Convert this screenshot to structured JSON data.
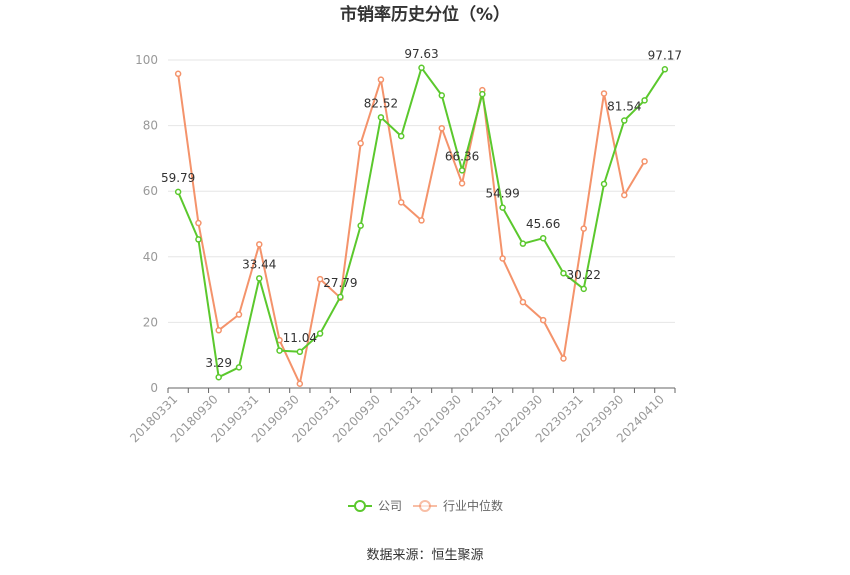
{
  "chart_data": {
    "type": "line",
    "title": "市销率历史分位（%）",
    "xlabel": "",
    "ylabel": "",
    "ylim": [
      0,
      100
    ],
    "yticks": [
      "0",
      "20",
      "40",
      "60",
      "80",
      "100"
    ],
    "xtick_labels": [
      "20180331",
      "20180930",
      "20190331",
      "20190930",
      "20200331",
      "20200930",
      "20210331",
      "20210930",
      "20220331",
      "20220930",
      "20230331",
      "20230930",
      "20240410"
    ],
    "categories": [
      "20180331",
      "20180630",
      "20180930",
      "20181231",
      "20190331",
      "20190630",
      "20190930",
      "20191231",
      "20200331",
      "20200630",
      "20200930",
      "20201231",
      "20210331",
      "20210630",
      "20210930",
      "20211231",
      "20220331",
      "20220630",
      "20220930",
      "20221231",
      "20230331",
      "20230630",
      "20230930",
      "20231231",
      "20240410"
    ],
    "series": [
      {
        "name": "公司",
        "color": "#5bc82d",
        "values": [
          59.79,
          45.3,
          3.29,
          6.3,
          33.44,
          11.4,
          11.04,
          16.6,
          27.79,
          49.5,
          82.52,
          76.8,
          97.63,
          89.2,
          66.36,
          89.6,
          54.99,
          44.0,
          45.66,
          35.0,
          30.22,
          62.2,
          81.54,
          87.7,
          97.17
        ],
        "labels": [
          "59.79",
          "",
          "3.29",
          "",
          "33.44",
          "",
          "11.04",
          "",
          "27.79",
          "",
          "82.52",
          "",
          "97.63",
          "",
          "66.36",
          "",
          "54.99",
          "",
          "45.66",
          "",
          "30.22",
          "",
          "81.54",
          "",
          "97.17"
        ]
      },
      {
        "name": "行业中位数",
        "color": "#f4936b",
        "values": [
          95.8,
          50.3,
          17.6,
          22.4,
          43.8,
          14.6,
          1.3,
          33.2,
          27.5,
          74.6,
          94.0,
          56.6,
          51.1,
          79.2,
          62.4,
          90.8,
          39.5,
          26.2,
          20.7,
          9.0,
          48.6,
          89.8,
          58.8,
          69.1,
          null
        ]
      }
    ],
    "legend_position": "bottom",
    "grid": true
  },
  "footer": {
    "source": "数据来源：恒生聚源"
  }
}
